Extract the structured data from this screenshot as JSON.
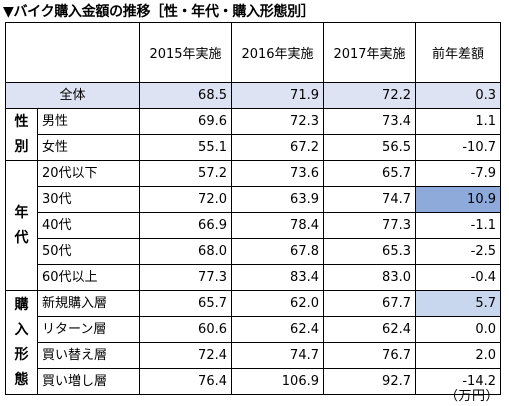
{
  "title": "▼バイク購入金額の推移［性・年代・購入形態別］",
  "unit": "（万円）",
  "headers": [
    "2015年実施",
    "2016年実施",
    "2017年実施",
    "前年差額"
  ],
  "total": {
    "label": "全体",
    "values": [
      "68.5",
      "71.9",
      "72.2",
      "0.3"
    ]
  },
  "groups": [
    {
      "name": [
        "性",
        "別"
      ],
      "rows": [
        {
          "label": "男性",
          "values": [
            "69.6",
            "72.3",
            "73.4",
            "1.1"
          ]
        },
        {
          "label": "女性",
          "values": [
            "55.1",
            "67.2",
            "56.5",
            "-10.7"
          ]
        }
      ]
    },
    {
      "name": [
        "年",
        "代"
      ],
      "rows": [
        {
          "label": "20代以下",
          "values": [
            "57.2",
            "73.6",
            "65.7",
            "-7.9"
          ]
        },
        {
          "label": "30代",
          "values": [
            "72.0",
            "63.9",
            "74.7",
            "10.9"
          ]
        },
        {
          "label": "40代",
          "values": [
            "66.9",
            "78.4",
            "77.3",
            "-1.1"
          ]
        },
        {
          "label": "50代",
          "values": [
            "68.0",
            "67.8",
            "65.3",
            "-2.5"
          ]
        },
        {
          "label": "60代以上",
          "values": [
            "77.3",
            "83.4",
            "83.0",
            "-0.4"
          ]
        }
      ]
    },
    {
      "name": [
        "購",
        "入",
        "形",
        "態"
      ],
      "rows": [
        {
          "label": "新規購入層",
          "values": [
            "65.7",
            "62.0",
            "67.7",
            "5.7"
          ]
        },
        {
          "label": "リターン層",
          "values": [
            "60.6",
            "62.4",
            "62.4",
            "0.0"
          ]
        },
        {
          "label": "買い替え層",
          "values": [
            "72.4",
            "74.7",
            "76.7",
            "2.0"
          ]
        },
        {
          "label": "買い増し層",
          "values": [
            "76.4",
            "106.9",
            "92.7",
            "-14.2"
          ]
        }
      ]
    }
  ],
  "highlight_colors": {
    "header_total": "#dde3f2",
    "strong": "#8eaadb",
    "light": "#c9d7ee"
  }
}
